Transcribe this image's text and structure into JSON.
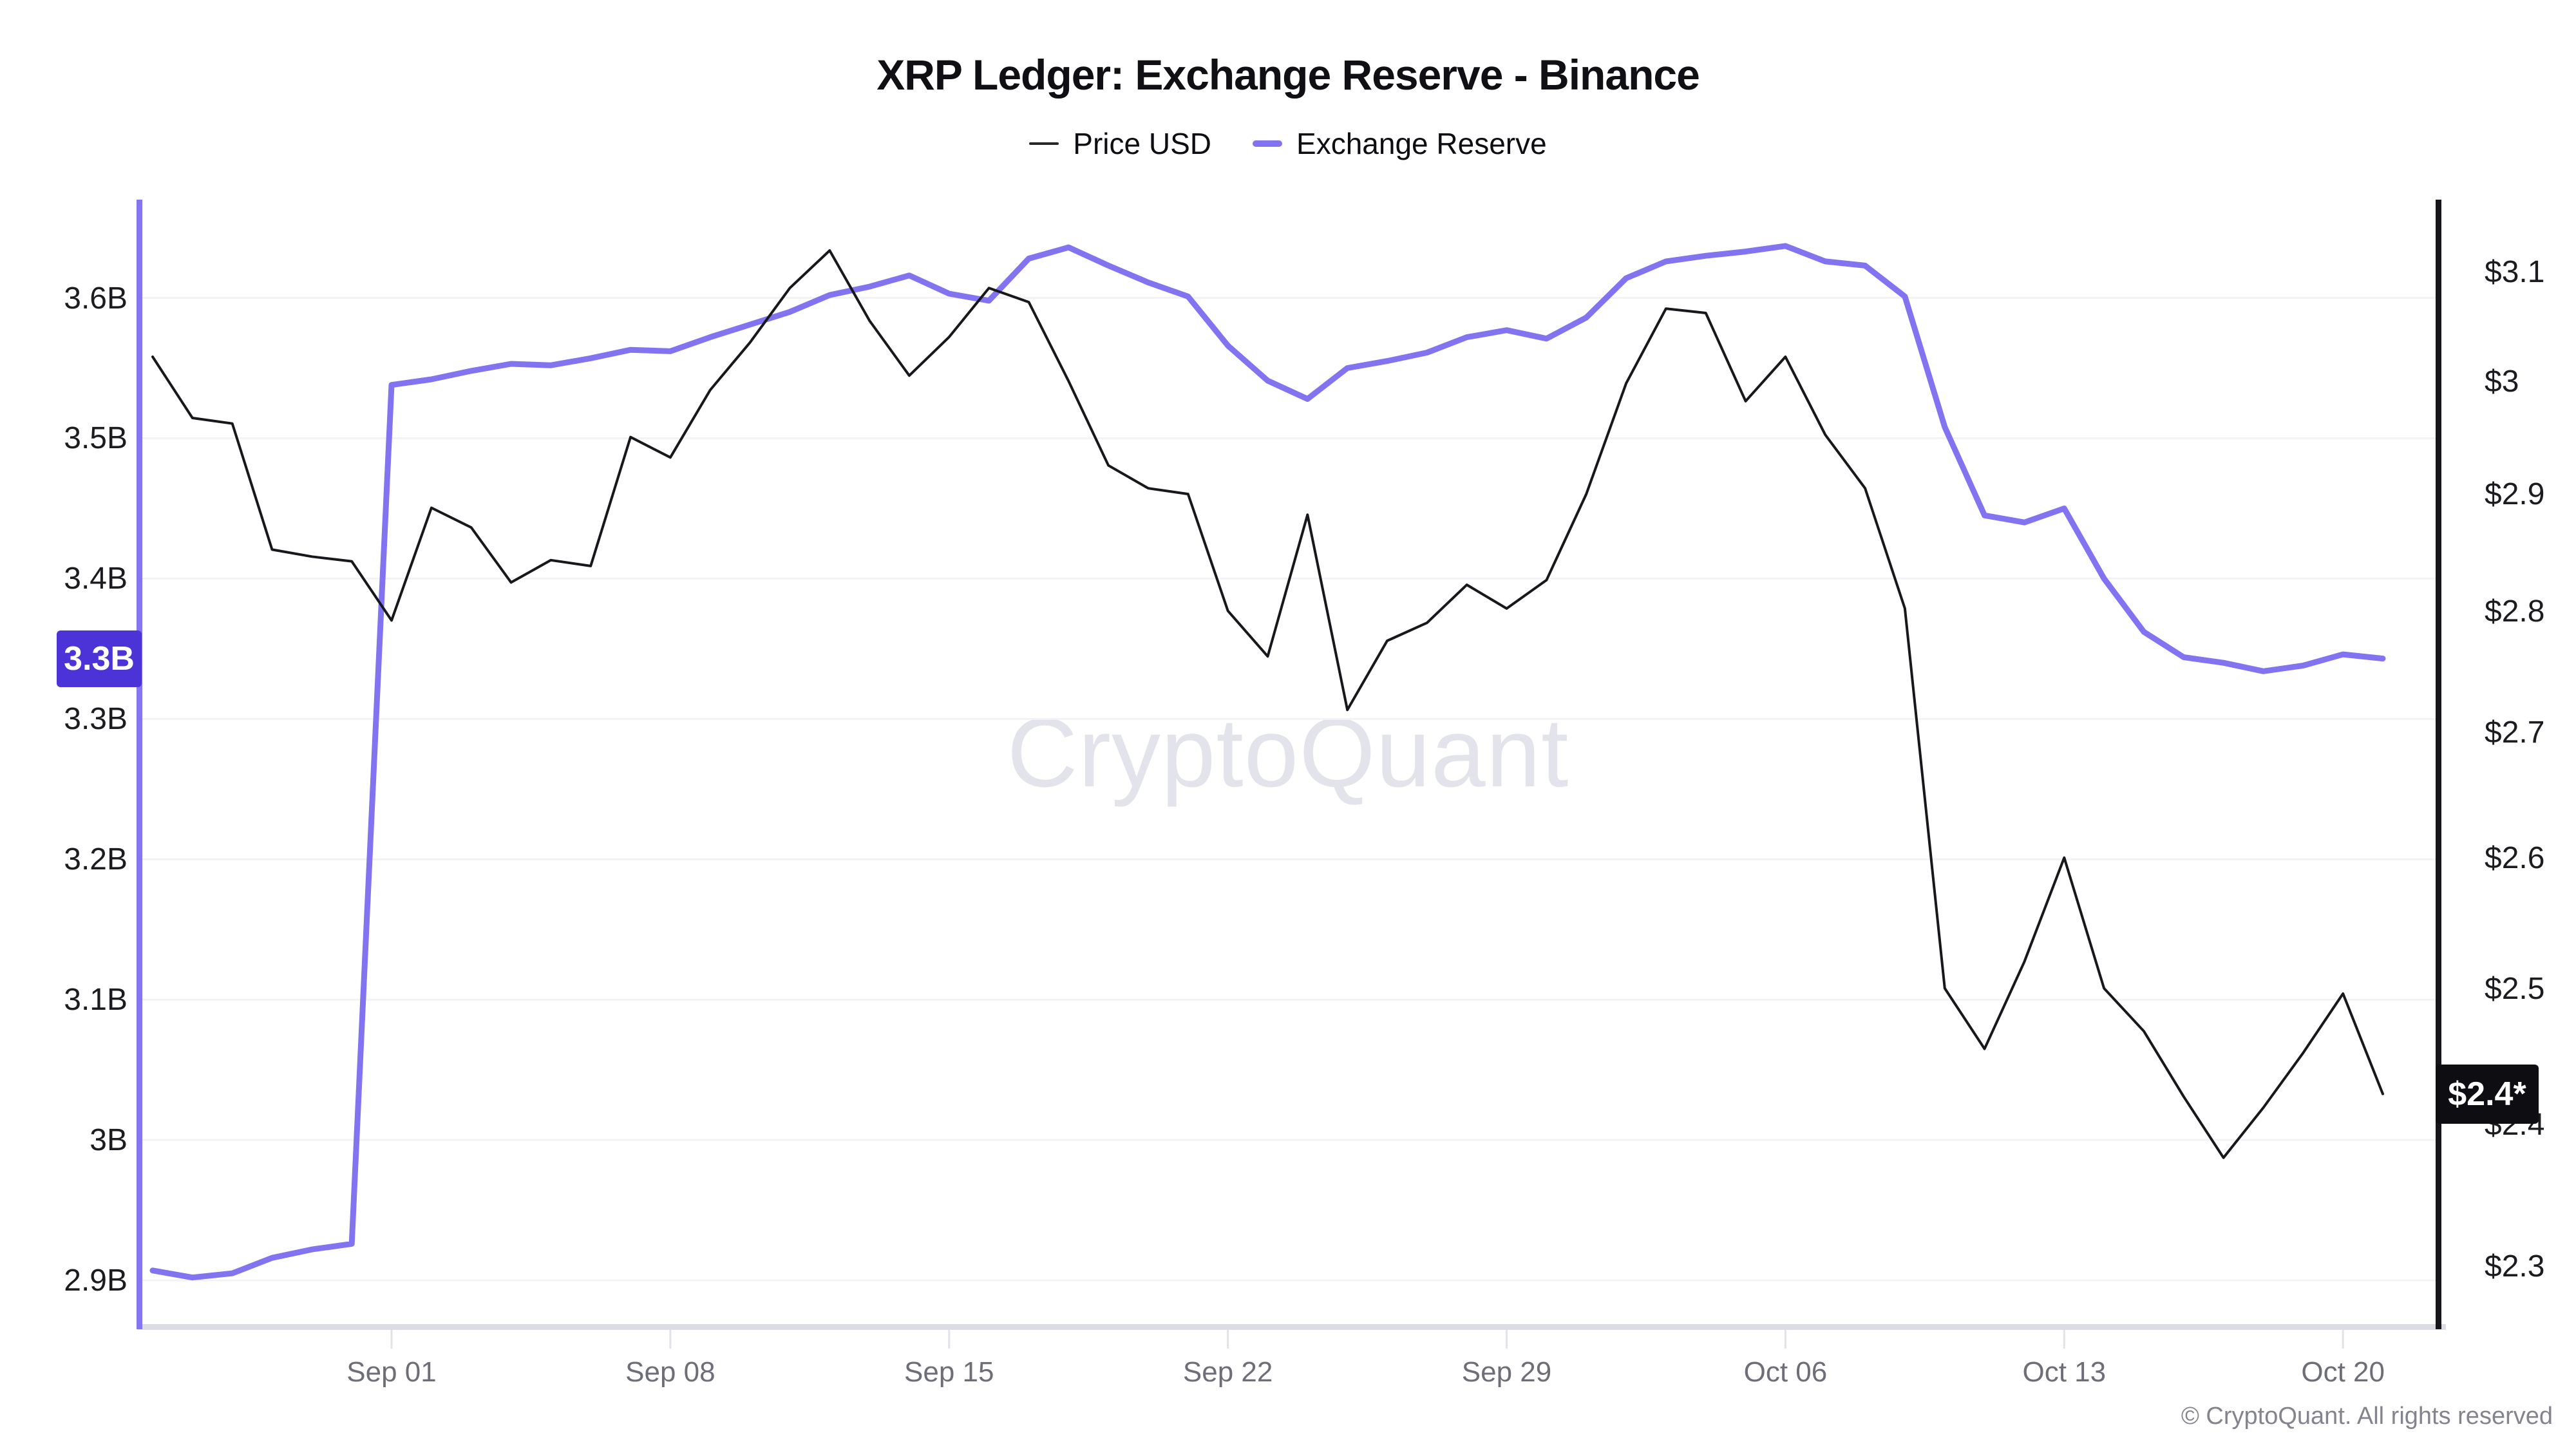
{
  "header": {
    "title": "XRP Ledger: Exchange Reserve - Binance"
  },
  "legend": {
    "items": [
      {
        "label": "Price USD",
        "color": "#26262b",
        "thickness": 4
      },
      {
        "label": "Exchange Reserve",
        "color": "#8273f0",
        "thickness": 10
      }
    ]
  },
  "watermark": "CryptoQuant",
  "footer": "© CryptoQuant. All rights reserved",
  "badges": {
    "reserve_current": {
      "label": "3.3B",
      "color": "#4b33d7",
      "value": 3.343
    },
    "price_current": {
      "label": "$2.4*",
      "color": "#0d0d12",
      "value": 2.422
    }
  },
  "colors": {
    "reserve_line": "#8273f0",
    "price_line": "#17171c",
    "left_axis_line": "#8475f0",
    "right_axis_line": "#15151a",
    "x_axis_band": "#dcdce4",
    "gridline": "#f4f2f4",
    "tick_mark": "#e2e2e8",
    "x_label": "#6e6e78",
    "y_label": "#1b1b20"
  },
  "chart_data": {
    "type": "line",
    "title": "XRP Ledger: Exchange Reserve - Binance",
    "grid": "horizontal",
    "legend_position": "top",
    "x": [
      "Aug 26",
      "Aug 27",
      "Aug 28",
      "Aug 29",
      "Aug 30",
      "Aug 31",
      "Sep 01",
      "Sep 02",
      "Sep 03",
      "Sep 04",
      "Sep 05",
      "Sep 06",
      "Sep 07",
      "Sep 08",
      "Sep 09",
      "Sep 10",
      "Sep 11",
      "Sep 12",
      "Sep 13",
      "Sep 14",
      "Sep 15",
      "Sep 16",
      "Sep 17",
      "Sep 18",
      "Sep 19",
      "Sep 20",
      "Sep 21",
      "Sep 22",
      "Sep 23",
      "Sep 24",
      "Sep 25",
      "Sep 26",
      "Sep 27",
      "Sep 28",
      "Sep 29",
      "Sep 30",
      "Oct 01",
      "Oct 02",
      "Oct 03",
      "Oct 04",
      "Oct 05",
      "Oct 06",
      "Oct 07",
      "Oct 08",
      "Oct 09",
      "Oct 10",
      "Oct 11",
      "Oct 12",
      "Oct 13",
      "Oct 14",
      "Oct 15",
      "Oct 16",
      "Oct 17",
      "Oct 18",
      "Oct 19",
      "Oct 20",
      "Oct 21"
    ],
    "series": [
      {
        "name": "Exchange Reserve",
        "axis": "left",
        "unit": "B",
        "color": "#8273f0",
        "stroke_width": 9,
        "values": [
          2.907,
          2.902,
          2.905,
          2.916,
          2.922,
          2.926,
          3.538,
          3.542,
          3.548,
          3.553,
          3.552,
          3.557,
          3.563,
          3.562,
          3.572,
          3.581,
          3.59,
          3.602,
          3.608,
          3.616,
          3.603,
          3.598,
          3.628,
          3.636,
          3.623,
          3.611,
          3.601,
          3.566,
          3.541,
          3.528,
          3.55,
          3.555,
          3.561,
          3.572,
          3.577,
          3.571,
          3.586,
          3.614,
          3.626,
          3.63,
          3.633,
          3.637,
          3.626,
          3.623,
          3.601,
          3.508,
          3.445,
          3.44,
          3.45,
          3.4,
          3.362,
          3.344,
          3.34,
          3.334,
          3.338,
          3.346,
          3.343
        ]
      },
      {
        "name": "Price USD",
        "axis": "right",
        "unit": "USD",
        "color": "#17171c",
        "stroke_width": 4,
        "values": [
          3.022,
          2.967,
          2.962,
          2.852,
          2.846,
          2.842,
          2.792,
          2.888,
          2.871,
          2.824,
          2.843,
          2.838,
          2.95,
          2.932,
          2.992,
          3.035,
          3.085,
          3.12,
          3.055,
          3.005,
          3.04,
          3.085,
          3.072,
          3.0,
          2.925,
          2.905,
          2.9,
          2.8,
          2.762,
          2.882,
          2.718,
          2.775,
          2.79,
          2.822,
          2.802,
          2.826,
          2.9,
          2.998,
          3.066,
          3.062,
          2.982,
          3.022,
          2.952,
          2.905,
          2.802,
          2.5,
          2.455,
          2.52,
          2.6,
          2.5,
          2.468,
          2.42,
          2.376,
          2.412,
          2.452,
          2.496,
          2.422
        ]
      }
    ],
    "left_axis": {
      "scale": "linear",
      "range": [
        2.867,
        3.67
      ],
      "ticks": [
        {
          "label": "3.6B",
          "value": 3.6
        },
        {
          "label": "3.5B",
          "value": 3.5
        },
        {
          "label": "3.4B",
          "value": 3.4
        },
        {
          "label": "3.3B",
          "value": 3.3
        },
        {
          "label": "3.2B",
          "value": 3.2
        },
        {
          "label": "3.1B",
          "value": 3.1
        },
        {
          "label": "3B",
          "value": 3.0
        },
        {
          "label": "2.9B",
          "value": 2.9
        }
      ]
    },
    "right_axis": {
      "scale": "log",
      "range": [
        2.2585,
        3.168
      ],
      "ticks": [
        {
          "label": "$3.1",
          "value": 3.1
        },
        {
          "label": "$3",
          "value": 3.0
        },
        {
          "label": "$2.9",
          "value": 2.9
        },
        {
          "label": "$2.8",
          "value": 2.8
        },
        {
          "label": "$2.7",
          "value": 2.7
        },
        {
          "label": "$2.6",
          "value": 2.6
        },
        {
          "label": "$2.5",
          "value": 2.5
        },
        {
          "label": "$2.4",
          "value": 2.4
        },
        {
          "label": "$2.3",
          "value": 2.3
        }
      ]
    },
    "x_axis": {
      "ticks": [
        {
          "label": "Sep 01",
          "index": 6
        },
        {
          "label": "Sep 08",
          "index": 13
        },
        {
          "label": "Sep 15",
          "index": 20
        },
        {
          "label": "Sep 22",
          "index": 27
        },
        {
          "label": "Sep 29",
          "index": 34
        },
        {
          "label": "Oct 06",
          "index": 41
        },
        {
          "label": "Oct 13",
          "index": 48
        },
        {
          "label": "Oct 20",
          "index": 55
        }
      ]
    }
  }
}
